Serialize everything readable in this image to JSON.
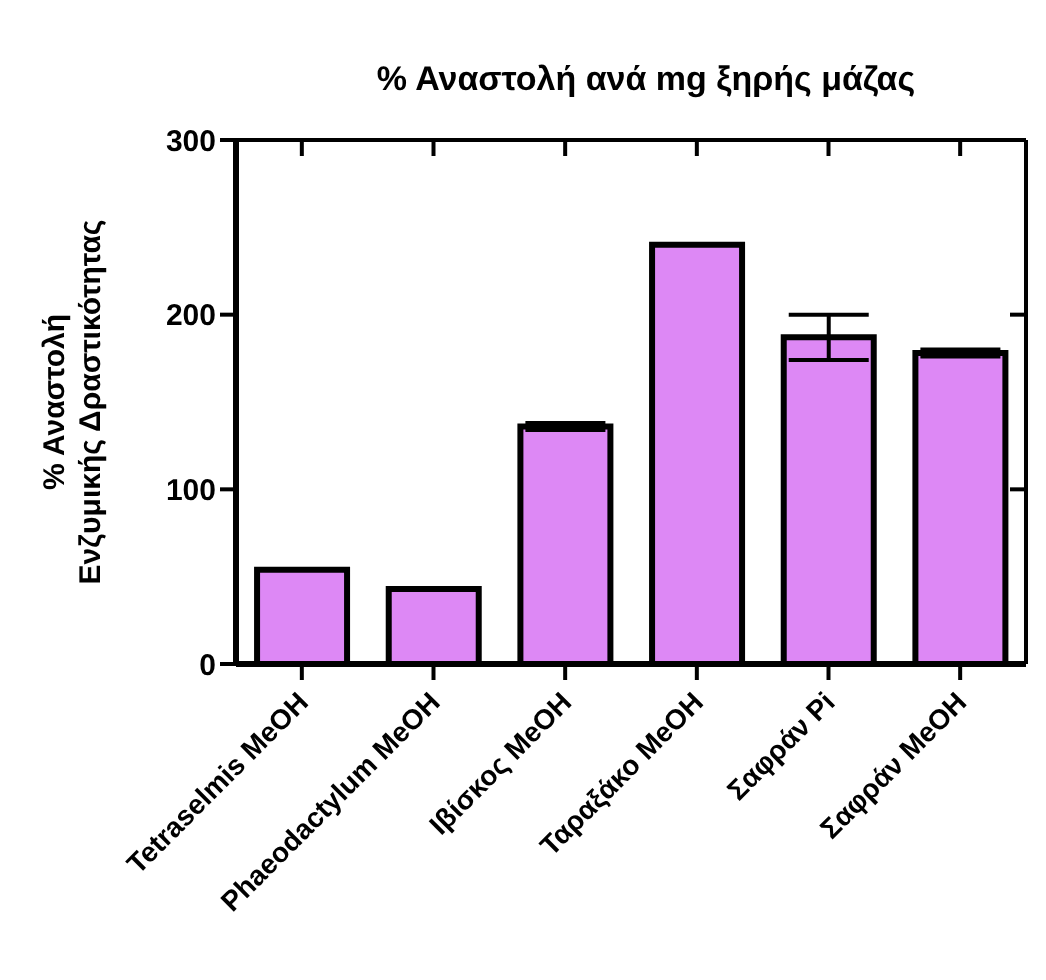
{
  "chart_data": {
    "type": "bar",
    "title": "% Αναστολή ανά mg ξηρής μάζας",
    "ylabel": "% Αναστολή\nΕνζυμικής Δραστικότητας",
    "categories": [
      "Tetraselmis MeOH",
      "Phaeodactylum MeOH",
      "Ιβίσκος MeOH",
      "Ταραξάκο MeOH",
      "Σαφράν Pi",
      "Σαφράν MeOH"
    ],
    "values": [
      54,
      43,
      136,
      240,
      187,
      178
    ],
    "errors": [
      null,
      null,
      2,
      null,
      13,
      2
    ],
    "color": "#dd88f5",
    "ylim": [
      0,
      300
    ],
    "yticks": [
      0,
      100,
      200,
      300
    ],
    "grid": false
  }
}
